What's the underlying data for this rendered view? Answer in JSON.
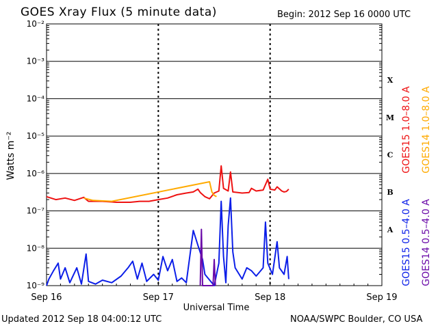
{
  "header": {
    "title": "GOES Xray Flux (5 minute data)",
    "begin": "Begin:  2012 Sep 16 0000 UTC"
  },
  "footer": {
    "updated": "Updated 2012 Sep 18 04:00:12 UTC",
    "credit": "NOAA/SWPC Boulder, CO USA"
  },
  "chart_data": {
    "type": "line",
    "ylabel": "Watts m⁻²",
    "xlabel": "Universal Time",
    "y_scale": "log",
    "ylim": [
      1e-09,
      0.01
    ],
    "y_ticks": [
      {
        "value": 1e-09,
        "label": "10⁻⁹"
      },
      {
        "value": 1e-08,
        "label": "10⁻⁸"
      },
      {
        "value": 1e-07,
        "label": "10⁻⁷"
      },
      {
        "value": 1e-06,
        "label": "10⁻⁶"
      },
      {
        "value": 1e-05,
        "label": "10⁻⁵"
      },
      {
        "value": 0.0001,
        "label": "10⁻⁴"
      },
      {
        "value": 0.001,
        "label": "10⁻³"
      },
      {
        "value": 0.01,
        "label": "10⁻²"
      }
    ],
    "xlim": [
      "2012-09-16 00:00",
      "2012-09-19 00:00"
    ],
    "x_ticks": [
      {
        "value": "2012-09-16 00:00",
        "label": "Sep 16"
      },
      {
        "value": "2012-09-17 00:00",
        "label": "Sep 17"
      },
      {
        "value": "2012-09-18 00:00",
        "label": "Sep 18"
      },
      {
        "value": "2012-09-19 00:00",
        "label": "Sep 19"
      }
    ],
    "flare_classes": [
      {
        "label": "X",
        "low": 0.0001,
        "high": 0.001
      },
      {
        "label": "M",
        "low": 1e-05,
        "high": 0.0001
      },
      {
        "label": "C",
        "low": 1e-06,
        "high": 1e-05
      },
      {
        "label": "B",
        "low": 1e-07,
        "high": 1e-06
      },
      {
        "label": "A",
        "low": 1e-08,
        "high": 1e-07
      }
    ],
    "series": [
      {
        "name": "GOES15 1.0–8.0 A",
        "color": "#ee1111",
        "points": [
          [
            "2012-09-16 00:00",
            2.4e-07
          ],
          [
            "2012-09-16 02:00",
            2e-07
          ],
          [
            "2012-09-16 04:00",
            2.2e-07
          ],
          [
            "2012-09-16 06:00",
            1.9e-07
          ],
          [
            "2012-09-16 08:00",
            2.3e-07
          ],
          [
            "2012-09-16 09:00",
            1.8e-07
          ],
          [
            "2012-09-16 12:00",
            1.8e-07
          ],
          [
            "2012-09-16 15:00",
            1.7e-07
          ],
          [
            "2012-09-16 18:00",
            1.7e-07
          ],
          [
            "2012-09-16 20:00",
            1.8e-07
          ],
          [
            "2012-09-16 22:00",
            1.8e-07
          ],
          [
            "2012-09-17 00:00",
            2e-07
          ],
          [
            "2012-09-17 02:00",
            2.2e-07
          ],
          [
            "2012-09-17 04:00",
            2.7e-07
          ],
          [
            "2012-09-17 06:00",
            3e-07
          ],
          [
            "2012-09-17 07:30",
            3.2e-07
          ],
          [
            "2012-09-17 08:30",
            3.8e-07
          ],
          [
            "2012-09-17 09:00",
            3.1e-07
          ],
          [
            "2012-09-17 10:00",
            2.4e-07
          ],
          [
            "2012-09-17 11:00",
            2.1e-07
          ],
          [
            "2012-09-17 12:00",
            3e-07
          ],
          [
            "2012-09-17 13:00",
            3.4e-07
          ],
          [
            "2012-09-17 13:30",
            1.6e-06
          ],
          [
            "2012-09-17 14:00",
            4e-07
          ],
          [
            "2012-09-17 15:00",
            3.4e-07
          ],
          [
            "2012-09-17 15:30",
            1.1e-06
          ],
          [
            "2012-09-17 16:00",
            3.2e-07
          ],
          [
            "2012-09-17 18:00",
            3e-07
          ],
          [
            "2012-09-17 19:30",
            3.1e-07
          ],
          [
            "2012-09-17 20:00",
            4e-07
          ],
          [
            "2012-09-17 21:00",
            3.4e-07
          ],
          [
            "2012-09-17 22:30",
            3.6e-07
          ],
          [
            "2012-09-17 23:30",
            7e-07
          ],
          [
            "2012-09-18 00:00",
            3.8e-07
          ],
          [
            "2012-09-18 01:00",
            3.6e-07
          ],
          [
            "2012-09-18 01:30",
            4.4e-07
          ],
          [
            "2012-09-18 02:30",
            3.4e-07
          ],
          [
            "2012-09-18 03:00",
            3.2e-07
          ],
          [
            "2012-09-18 03:30",
            3.3e-07
          ],
          [
            "2012-09-18 04:00",
            3.8e-07
          ]
        ]
      },
      {
        "name": "GOES14 1.0–8.0 A",
        "color": "#ffaa00",
        "points": [
          [
            "2012-09-16 08:00",
            2.2e-07
          ],
          [
            "2012-09-16 10:00",
            1.9e-07
          ],
          [
            "2012-09-16 14:00",
            1.8e-07
          ],
          [
            "2012-09-17 11:00",
            6e-07
          ],
          [
            "2012-09-17 11:30",
            3.2e-07
          ],
          [
            "2012-09-17 12:00",
            2.6e-07
          ],
          [
            "2012-09-17 12:30",
            2.4e-07
          ]
        ]
      },
      {
        "name": "GOES15 0.5–4.0 A",
        "color": "#0b1ee8",
        "points": [
          [
            "2012-09-16 00:00",
            1e-09
          ],
          [
            "2012-09-16 00:30",
            1.5e-09
          ],
          [
            "2012-09-16 01:30",
            2.5e-09
          ],
          [
            "2012-09-16 02:30",
            4e-09
          ],
          [
            "2012-09-16 03:00",
            1.5e-09
          ],
          [
            "2012-09-16 04:00",
            3e-09
          ],
          [
            "2012-09-16 05:00",
            1.2e-09
          ],
          [
            "2012-09-16 06:30",
            3e-09
          ],
          [
            "2012-09-16 07:30",
            1.1e-09
          ],
          [
            "2012-09-16 08:30",
            7e-09
          ],
          [
            "2012-09-16 09:00",
            1.3e-09
          ],
          [
            "2012-09-16 10:30",
            1.1e-09
          ],
          [
            "2012-09-16 12:00",
            1.4e-09
          ],
          [
            "2012-09-16 14:00",
            1.2e-09
          ],
          [
            "2012-09-16 16:00",
            1.8e-09
          ],
          [
            "2012-09-16 17:30",
            3e-09
          ],
          [
            "2012-09-16 18:30",
            4.5e-09
          ],
          [
            "2012-09-16 19:30",
            1.5e-09
          ],
          [
            "2012-09-16 20:30",
            4e-09
          ],
          [
            "2012-09-16 21:30",
            1.3e-09
          ],
          [
            "2012-09-16 23:00",
            2e-09
          ],
          [
            "2012-09-17 00:00",
            1.4e-09
          ],
          [
            "2012-09-17 01:00",
            6e-09
          ],
          [
            "2012-09-17 02:00",
            2.5e-09
          ],
          [
            "2012-09-17 03:00",
            5e-09
          ],
          [
            "2012-09-17 04:00",
            1.3e-09
          ],
          [
            "2012-09-17 05:00",
            1.6e-09
          ],
          [
            "2012-09-17 06:00",
            1.2e-09
          ],
          [
            "2012-09-17 07:30",
            3e-08
          ],
          [
            "2012-09-17 08:30",
            1.2e-08
          ],
          [
            "2012-09-17 09:30",
            5e-09
          ],
          [
            "2012-09-17 10:00",
            2e-09
          ],
          [
            "2012-09-17 12:00",
            1e-09
          ],
          [
            "2012-09-17 13:00",
            4e-09
          ],
          [
            "2012-09-17 13:30",
            1.8e-07
          ],
          [
            "2012-09-17 14:00",
            6e-09
          ],
          [
            "2012-09-17 14:30",
            1.2e-09
          ],
          [
            "2012-09-17 15:00",
            4e-08
          ],
          [
            "2012-09-17 15:30",
            2.2e-07
          ],
          [
            "2012-09-17 16:00",
            8e-09
          ],
          [
            "2012-09-17 16:30",
            3e-09
          ],
          [
            "2012-09-17 18:00",
            1.5e-09
          ],
          [
            "2012-09-17 19:00",
            3e-09
          ],
          [
            "2012-09-17 20:00",
            2.5e-09
          ],
          [
            "2012-09-17 21:00",
            1.8e-09
          ],
          [
            "2012-09-17 22:30",
            3e-09
          ],
          [
            "2012-09-17 23:00",
            5e-08
          ],
          [
            "2012-09-17 23:30",
            4e-09
          ],
          [
            "2012-09-18 00:30",
            2e-09
          ],
          [
            "2012-09-18 01:30",
            1.5e-08
          ],
          [
            "2012-09-18 02:00",
            3e-09
          ],
          [
            "2012-09-18 03:00",
            2e-09
          ],
          [
            "2012-09-18 03:40",
            6e-09
          ],
          [
            "2012-09-18 04:00",
            1.5e-09
          ]
        ]
      },
      {
        "name": "GOES14 0.5–4.0 A",
        "color": "#6a0aa8",
        "points": [
          [
            "2012-09-17 09:00",
            1e-09
          ],
          [
            "2012-09-17 09:15",
            3.2e-08
          ],
          [
            "2012-09-17 09:30",
            1e-09
          ],
          [
            "2012-09-17 11:45",
            1e-09
          ],
          [
            "2012-09-17 12:00",
            5e-09
          ],
          [
            "2012-09-17 12:15",
            1e-09
          ]
        ]
      }
    ]
  }
}
